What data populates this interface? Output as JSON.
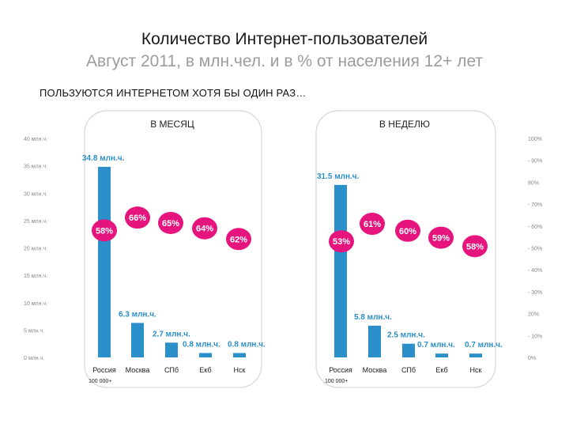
{
  "header": {
    "title": "Количество Интернет-пользователей",
    "subtitle": "Август 2011, в млн.чел. и в % от населения 12+ лет",
    "section_label": "ПОЛЬЗУЮТСЯ ИНТЕРНЕТОМ ХОТЯ БЫ ОДИН РАЗ…"
  },
  "colors": {
    "bar": "#2b8fc9",
    "bar_label": "#2b8fc9",
    "bubble": "#e6157e",
    "bubble_text": "#ffffff",
    "panel_border": "#d6d6d6",
    "axis_text": "#888888"
  },
  "chart_data": [
    {
      "type": "bar",
      "title": "В МЕСЯЦ",
      "categories": [
        "Россия",
        "Москва",
        "СПб",
        "Екб",
        "Нск"
      ],
      "category_note": "100 000+",
      "values": [
        34.8,
        6.3,
        2.7,
        0.8,
        0.8
      ],
      "value_labels": [
        "34.8 млн.ч.",
        "6.3 млн.ч.",
        "2.7 млн.ч.",
        "0.8 млн.ч.",
        "0.8 млн.ч."
      ],
      "percent_values": [
        58,
        66,
        65,
        64,
        62
      ],
      "percent_labels": [
        "58%",
        "66%",
        "65%",
        "64%",
        "62%"
      ],
      "ylim": [
        0,
        40
      ],
      "y_ticks": [
        0,
        5,
        10,
        15,
        20,
        25,
        30,
        35,
        40
      ],
      "y_tick_labels": [
        "0 млн.ч.",
        "5 млн.ч.",
        "10 млн.ч.",
        "15 млн.ч.",
        "20 млн.ч.",
        "25 млн.ч.",
        "30 млн.ч.",
        "35 млн.ч.",
        "40 млн.ч."
      ],
      "y2lim": [
        0,
        100
      ]
    },
    {
      "type": "bar",
      "title": "В НЕДЕЛЮ",
      "categories": [
        "Россия",
        "Москва",
        "СПб",
        "Екб",
        "Нск"
      ],
      "category_note": "100 000+",
      "values": [
        31.5,
        5.8,
        2.5,
        0.7,
        0.7
      ],
      "value_labels": [
        "31.5 млн.ч.",
        "5.8 млн.ч.",
        "2.5 млн.ч.",
        "0.7 млн.ч.",
        "0.7 млн.ч."
      ],
      "percent_values": [
        53,
        61,
        60,
        59,
        58
      ],
      "percent_labels": [
        "53%",
        "61%",
        "60%",
        "59%",
        "58%"
      ],
      "ylim": [
        0,
        40
      ],
      "y2lim": [
        0,
        100
      ],
      "y2_ticks": [
        0,
        10,
        20,
        30,
        40,
        50,
        60,
        70,
        80,
        90,
        100
      ],
      "y2_tick_labels": [
        "0%",
        "- 10%",
        "20%",
        "- 30%",
        "- 40%",
        "- 50%",
        "- 60%",
        "- 70%",
        "80%",
        "- 90%",
        "100%"
      ]
    }
  ]
}
